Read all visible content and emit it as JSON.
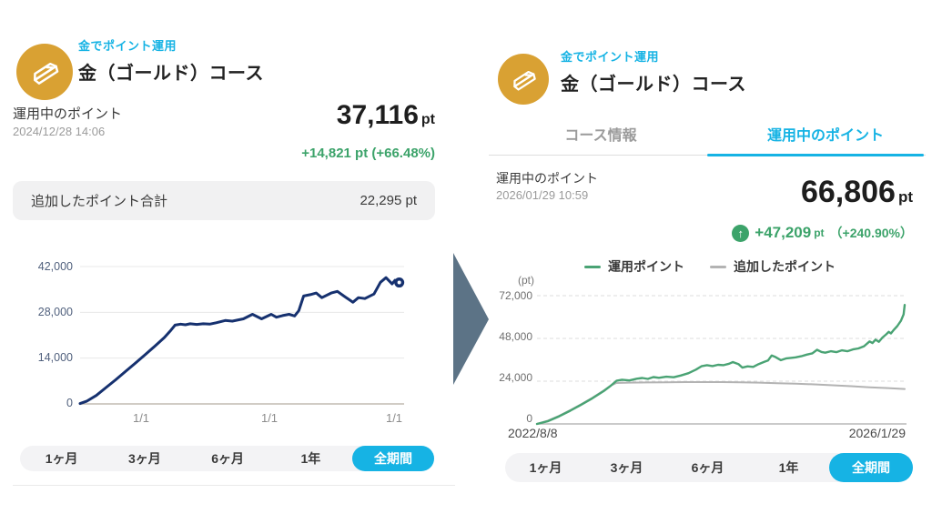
{
  "colors": {
    "accent_cyan": "#16B3E4",
    "gold_icon": "#D9A133",
    "green": "#3CA36A",
    "navy_line": "#16316F",
    "gray_line": "#B3B3B3",
    "arrow": "#5C7386"
  },
  "left_panel": {
    "app_label": "金でポイント運用",
    "course_title": "金（ゴールド）コース",
    "points_label": "運用中のポイント",
    "timestamp": "2024/12/28 14:06",
    "points_value": "37,116",
    "points_unit": "pt",
    "change_text": "+14,821 pt (+66.48%)",
    "added_points_label": "追加したポイント合計",
    "added_points_value": "22,295 pt",
    "period_tabs": [
      "1ヶ月",
      "3ヶ月",
      "6ヶ月",
      "1年",
      "全期間"
    ],
    "selected_period": "全期間"
  },
  "right_panel": {
    "app_label": "金でポイント運用",
    "course_title": "金（ゴールド）コース",
    "tabs": [
      "コース情報",
      "運用中のポイント"
    ],
    "active_tab": "運用中のポイント",
    "points_label": "運用中のポイント",
    "timestamp": "2026/01/29 10:59",
    "points_value": "66,806",
    "points_unit": "pt",
    "change_value": "+47,209",
    "change_unit": "pt",
    "change_pct": "（+240.90%）",
    "up_arrow": "↑",
    "unit_label": "(pt)",
    "legend": [
      {
        "label": "運用ポイント",
        "color": "#4AA374"
      },
      {
        "label": "追加したポイント",
        "color": "#B3B3B3"
      }
    ],
    "period_tabs": [
      "1ヶ月",
      "3ヶ月",
      "6ヶ月",
      "1年",
      "全期間"
    ],
    "selected_period": "全期間"
  },
  "chart_data": [
    {
      "type": "line",
      "ylim": [
        0,
        42000
      ],
      "ymax": 42000,
      "grid_dash": false,
      "grid_color": "#E8E8E8",
      "axis_color": "#C2BCB2",
      "yticks": [
        {
          "label": "42,000",
          "value": 42000
        },
        {
          "label": "28,000",
          "value": 28000
        },
        {
          "label": "14,000",
          "value": 14000
        },
        {
          "label": "0",
          "value": 0
        }
      ],
      "xticks": [
        "1/1",
        "1/1",
        "1/1"
      ],
      "series": [
        {
          "name": "運用中のポイント",
          "color": "#16316F",
          "width": 3,
          "end_marker": true,
          "points": [
            [
              0,
              100
            ],
            [
              0.02,
              800
            ],
            [
              0.05,
              2600
            ],
            [
              0.08,
              5000
            ],
            [
              0.11,
              7400
            ],
            [
              0.14,
              9900
            ],
            [
              0.17,
              12400
            ],
            [
              0.2,
              15000
            ],
            [
              0.23,
              17600
            ],
            [
              0.26,
              20300
            ],
            [
              0.28,
              22500
            ],
            [
              0.293,
              24100
            ],
            [
              0.31,
              24400
            ],
            [
              0.325,
              24200
            ],
            [
              0.34,
              24500
            ],
            [
              0.36,
              24300
            ],
            [
              0.38,
              24500
            ],
            [
              0.4,
              24400
            ],
            [
              0.42,
              24800
            ],
            [
              0.448,
              25500
            ],
            [
              0.47,
              25300
            ],
            [
              0.504,
              26000
            ],
            [
              0.532,
              27400
            ],
            [
              0.56,
              26000
            ],
            [
              0.59,
              27400
            ],
            [
              0.606,
              26500
            ],
            [
              0.625,
              27000
            ],
            [
              0.645,
              27400
            ],
            [
              0.662,
              26900
            ],
            [
              0.675,
              28500
            ],
            [
              0.69,
              33000
            ],
            [
              0.71,
              33400
            ],
            [
              0.729,
              33900
            ],
            [
              0.746,
              32500
            ],
            [
              0.775,
              33900
            ],
            [
              0.794,
              34400
            ],
            [
              0.814,
              33000
            ],
            [
              0.842,
              31100
            ],
            [
              0.859,
              32500
            ],
            [
              0.879,
              32200
            ],
            [
              0.907,
              33600
            ],
            [
              0.927,
              37200
            ],
            [
              0.944,
              38600
            ],
            [
              0.963,
              36700
            ],
            [
              0.972,
              37800
            ],
            [
              0.98,
              36400
            ],
            [
              0.985,
              37116
            ]
          ]
        }
      ]
    },
    {
      "type": "line",
      "ylim": [
        0,
        72000
      ],
      "ymax": 72000,
      "grid_dash": true,
      "grid_color": "#DCDCDC",
      "axis_color": "#B9B9B9",
      "yticks": [
        {
          "label": "72,000",
          "value": 72000
        },
        {
          "label": "48,000",
          "value": 48000
        },
        {
          "label": "24,000",
          "value": 24000
        },
        {
          "label": "0",
          "value": 0
        }
      ],
      "xticks": [
        "2022/8/8",
        "2026/1/29"
      ],
      "series": [
        {
          "name": "追加したポイント",
          "color": "#B3B3B3",
          "width": 2,
          "points": [
            [
              0,
              0
            ],
            [
              0.03,
              1900
            ],
            [
              0.06,
              4600
            ],
            [
              0.09,
              7700
            ],
            [
              0.12,
              11100
            ],
            [
              0.15,
              14700
            ],
            [
              0.18,
              18700
            ],
            [
              0.2,
              21600
            ],
            [
              0.215,
              23000
            ],
            [
              0.25,
              23200
            ],
            [
              0.3,
              23300
            ],
            [
              0.35,
              23400
            ],
            [
              0.4,
              23500
            ],
            [
              0.45,
              23500
            ],
            [
              0.5,
              23500
            ],
            [
              0.55,
              23400
            ],
            [
              0.6,
              23200
            ],
            [
              0.65,
              22900
            ],
            [
              0.7,
              22600
            ],
            [
              0.75,
              22200
            ],
            [
              0.8,
              21700
            ],
            [
              0.85,
              21200
            ],
            [
              0.9,
              20600
            ],
            [
              0.95,
              20100
            ],
            [
              0.995,
              19597
            ]
          ]
        },
        {
          "name": "運用ポイント",
          "color": "#4AA374",
          "width": 2.4,
          "points": [
            [
              0,
              0
            ],
            [
              0.03,
              1600
            ],
            [
              0.06,
              4300
            ],
            [
              0.09,
              7400
            ],
            [
              0.12,
              10800
            ],
            [
              0.15,
              14400
            ],
            [
              0.18,
              18400
            ],
            [
              0.2,
              21500
            ],
            [
              0.215,
              24200
            ],
            [
              0.23,
              24800
            ],
            [
              0.25,
              24400
            ],
            [
              0.27,
              25400
            ],
            [
              0.285,
              25800
            ],
            [
              0.3,
              25300
            ],
            [
              0.315,
              26300
            ],
            [
              0.33,
              25900
            ],
            [
              0.35,
              26500
            ],
            [
              0.37,
              26200
            ],
            [
              0.39,
              27200
            ],
            [
              0.41,
              28500
            ],
            [
              0.43,
              30500
            ],
            [
              0.445,
              32400
            ],
            [
              0.46,
              33000
            ],
            [
              0.475,
              32500
            ],
            [
              0.49,
              33200
            ],
            [
              0.505,
              33000
            ],
            [
              0.52,
              33800
            ],
            [
              0.53,
              34700
            ],
            [
              0.545,
              33600
            ],
            [
              0.556,
              31600
            ],
            [
              0.57,
              32300
            ],
            [
              0.585,
              32000
            ],
            [
              0.6,
              33600
            ],
            [
              0.615,
              34800
            ],
            [
              0.625,
              35600
            ],
            [
              0.635,
              38400
            ],
            [
              0.645,
              37600
            ],
            [
              0.66,
              35800
            ],
            [
              0.675,
              36800
            ],
            [
              0.69,
              37100
            ],
            [
              0.7,
              37400
            ],
            [
              0.715,
              38000
            ],
            [
              0.73,
              38900
            ],
            [
              0.745,
              39600
            ],
            [
              0.758,
              41600
            ],
            [
              0.77,
              40400
            ],
            [
              0.78,
              40000
            ],
            [
              0.795,
              40800
            ],
            [
              0.81,
              40300
            ],
            [
              0.825,
              41300
            ],
            [
              0.84,
              40800
            ],
            [
              0.855,
              41800
            ],
            [
              0.87,
              42400
            ],
            [
              0.885,
              43600
            ],
            [
              0.9,
              46300
            ],
            [
              0.908,
              45400
            ],
            [
              0.916,
              47300
            ],
            [
              0.925,
              46100
            ],
            [
              0.935,
              48500
            ],
            [
              0.945,
              50300
            ],
            [
              0.952,
              51700
            ],
            [
              0.958,
              50800
            ],
            [
              0.966,
              52900
            ],
            [
              0.975,
              54900
            ],
            [
              0.985,
              57900
            ],
            [
              0.992,
              61500
            ],
            [
              0.995,
              66806
            ]
          ]
        }
      ]
    }
  ]
}
